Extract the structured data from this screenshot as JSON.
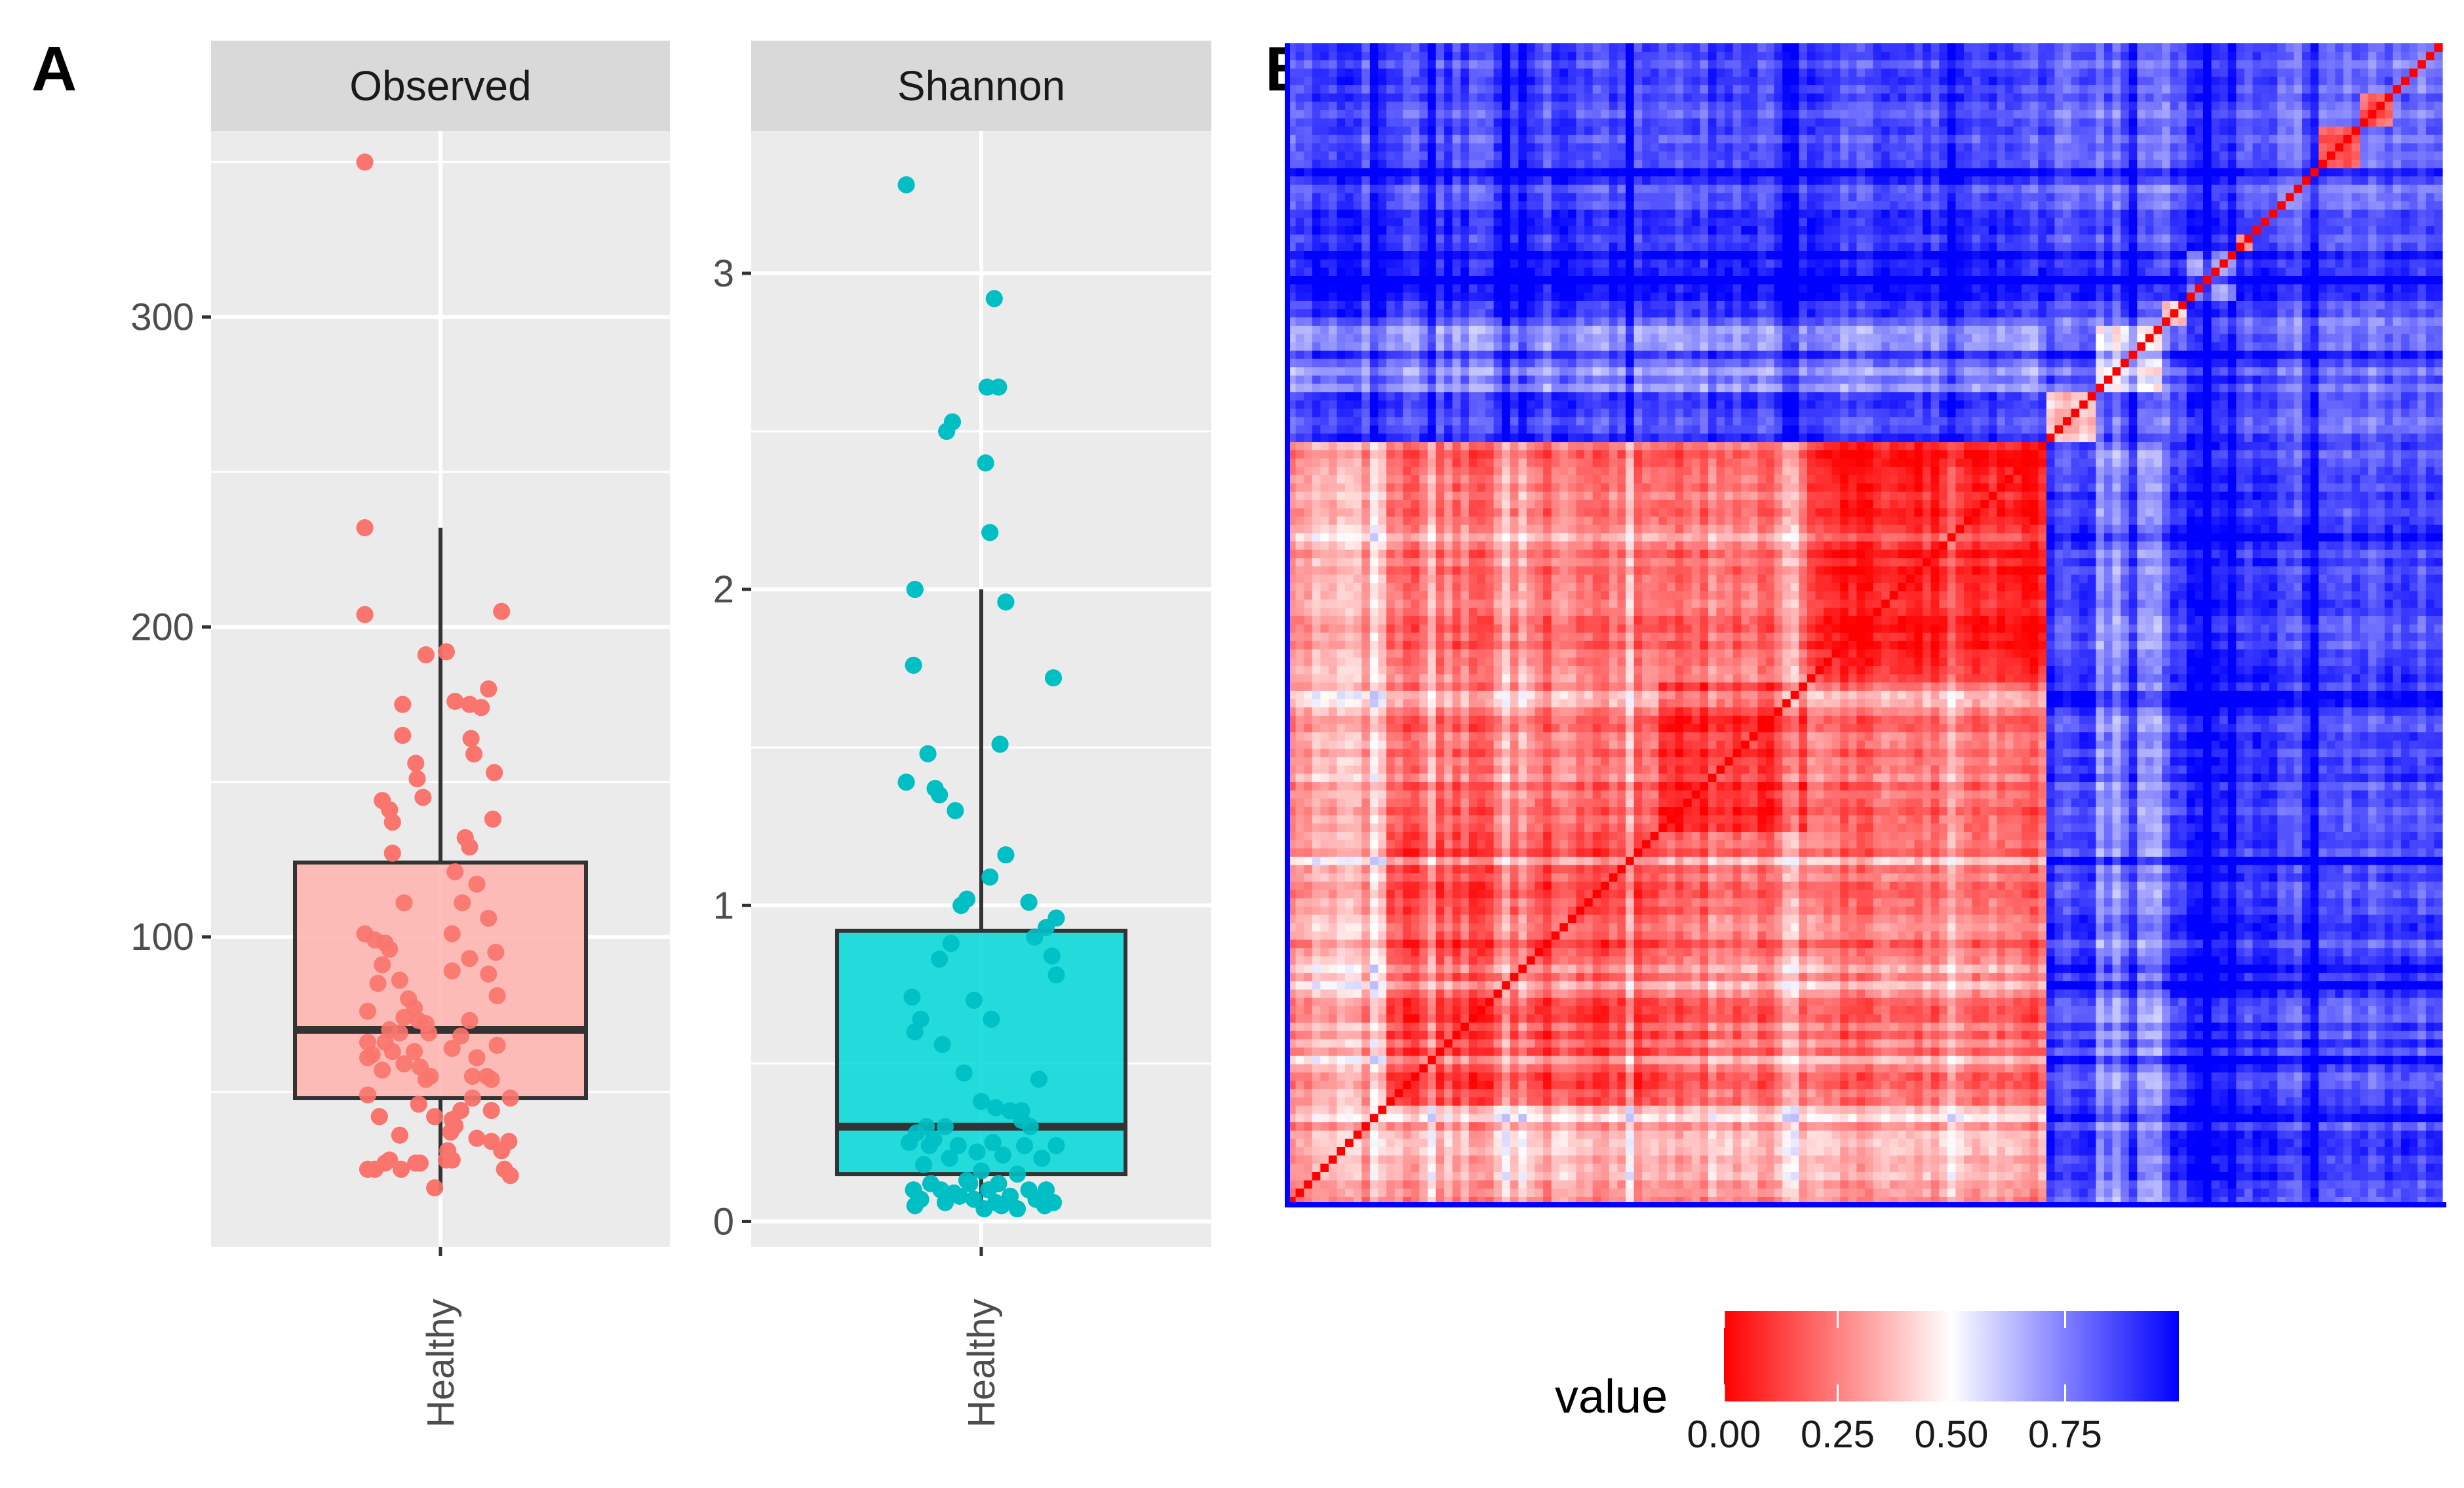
{
  "panel_labels": {
    "a": "A",
    "b": "B"
  },
  "chart_data": [
    {
      "type": "boxplot",
      "panel": "A",
      "facet": "Observed",
      "category": "Healthy",
      "color": "#F8766D",
      "fill": "#FFB3AE",
      "ylim": [
        0,
        360
      ],
      "yticks": [
        100,
        200,
        300
      ],
      "box": {
        "min": 18,
        "q1": 48,
        "median": 70,
        "q3": 124,
        "max": 232
      },
      "points": [
        {
          "x": -0.52,
          "y": 350
        },
        {
          "x": -0.52,
          "y": 232
        },
        {
          "x": 0.04,
          "y": 192
        },
        {
          "x": -0.1,
          "y": 191
        },
        {
          "x": -0.52,
          "y": 204
        },
        {
          "x": 0.42,
          "y": 205
        },
        {
          "x": -0.26,
          "y": 175
        },
        {
          "x": 0.33,
          "y": 180
        },
        {
          "x": 0.1,
          "y": 176
        },
        {
          "x": 0.2,
          "y": 175
        },
        {
          "x": 0.28,
          "y": 174
        },
        {
          "x": 0.21,
          "y": 164
        },
        {
          "x": -0.26,
          "y": 165
        },
        {
          "x": 0.23,
          "y": 159
        },
        {
          "x": -0.17,
          "y": 156
        },
        {
          "x": -0.16,
          "y": 151
        },
        {
          "x": 0.37,
          "y": 153
        },
        {
          "x": -0.12,
          "y": 145
        },
        {
          "x": -0.4,
          "y": 144
        },
        {
          "x": -0.35,
          "y": 141
        },
        {
          "x": -0.33,
          "y": 137
        },
        {
          "x": 0.36,
          "y": 138
        },
        {
          "x": 0.17,
          "y": 132
        },
        {
          "x": 0.2,
          "y": 129
        },
        {
          "x": -0.33,
          "y": 127
        },
        {
          "x": 0.1,
          "y": 121
        },
        {
          "x": 0.25,
          "y": 117
        },
        {
          "x": -0.25,
          "y": 111
        },
        {
          "x": 0.15,
          "y": 111
        },
        {
          "x": 0.33,
          "y": 106
        },
        {
          "x": -0.52,
          "y": 101
        },
        {
          "x": -0.45,
          "y": 99
        },
        {
          "x": -0.38,
          "y": 98
        },
        {
          "x": 0.08,
          "y": 101
        },
        {
          "x": -0.35,
          "y": 96
        },
        {
          "x": 0.2,
          "y": 93
        },
        {
          "x": 0.38,
          "y": 95
        },
        {
          "x": -0.4,
          "y": 91
        },
        {
          "x": 0.33,
          "y": 88
        },
        {
          "x": 0.08,
          "y": 89
        },
        {
          "x": -0.28,
          "y": 86
        },
        {
          "x": -0.43,
          "y": 85
        },
        {
          "x": 0.39,
          "y": 81
        },
        {
          "x": -0.22,
          "y": 80
        },
        {
          "x": -0.18,
          "y": 77
        },
        {
          "x": -0.5,
          "y": 76
        },
        {
          "x": -0.25,
          "y": 74
        },
        {
          "x": -0.15,
          "y": 73
        },
        {
          "x": -0.1,
          "y": 72
        },
        {
          "x": 0.2,
          "y": 73
        },
        {
          "x": -0.35,
          "y": 70
        },
        {
          "x": -0.28,
          "y": 69
        },
        {
          "x": -0.08,
          "y": 69
        },
        {
          "x": 0.14,
          "y": 68
        },
        {
          "x": -0.5,
          "y": 66
        },
        {
          "x": -0.38,
          "y": 66
        },
        {
          "x": -0.33,
          "y": 63
        },
        {
          "x": -0.18,
          "y": 63
        },
        {
          "x": 0.08,
          "y": 64
        },
        {
          "x": 0.39,
          "y": 65
        },
        {
          "x": -0.5,
          "y": 61
        },
        {
          "x": -0.25,
          "y": 59
        },
        {
          "x": 0.25,
          "y": 61
        },
        {
          "x": -0.14,
          "y": 58
        },
        {
          "x": -0.4,
          "y": 57
        },
        {
          "x": -0.07,
          "y": 55
        },
        {
          "x": 0.22,
          "y": 55
        },
        {
          "x": 0.32,
          "y": 55
        },
        {
          "x": 0.35,
          "y": 54
        },
        {
          "x": -0.1,
          "y": 54
        },
        {
          "x": -0.5,
          "y": 49
        },
        {
          "x": 0.22,
          "y": 48
        },
        {
          "x": 0.48,
          "y": 48
        },
        {
          "x": -0.15,
          "y": 46
        },
        {
          "x": 0.14,
          "y": 44
        },
        {
          "x": 0.35,
          "y": 44
        },
        {
          "x": -0.04,
          "y": 42
        },
        {
          "x": -0.42,
          "y": 42
        },
        {
          "x": 0.08,
          "y": 41
        },
        {
          "x": 0.07,
          "y": 37
        },
        {
          "x": -0.28,
          "y": 36
        },
        {
          "x": 0.25,
          "y": 35
        },
        {
          "x": 0.35,
          "y": 34
        },
        {
          "x": 0.47,
          "y": 34
        },
        {
          "x": 0.42,
          "y": 31
        },
        {
          "x": 0.05,
          "y": 31
        },
        {
          "x": 0.04,
          "y": 28
        },
        {
          "x": -0.38,
          "y": 27
        },
        {
          "x": -0.35,
          "y": 28
        },
        {
          "x": -0.14,
          "y": 27
        },
        {
          "x": -0.5,
          "y": 25
        },
        {
          "x": -0.45,
          "y": 25
        },
        {
          "x": -0.27,
          "y": 25
        },
        {
          "x": -0.17,
          "y": 27
        },
        {
          "x": 0.44,
          "y": 25
        },
        {
          "x": 0.48,
          "y": 23
        },
        {
          "x": -0.04,
          "y": 19
        },
        {
          "x": 0.08,
          "y": 28
        },
        {
          "x": 0.1,
          "y": 39
        },
        {
          "x": -0.47,
          "y": 62
        }
      ]
    },
    {
      "type": "boxplot",
      "panel": "A",
      "facet": "Shannon",
      "category": "Healthy",
      "color": "#00BFC4",
      "fill": "#00D8D8",
      "ylim": [
        -0.08,
        3.45
      ],
      "yticks": [
        0,
        1,
        2,
        3
      ],
      "box": {
        "min": 0.04,
        "q1": 0.15,
        "median": 0.3,
        "q3": 0.92,
        "max": 2.0
      },
      "points": [
        {
          "x": -0.52,
          "y": 3.28
        },
        {
          "x": 0.09,
          "y": 2.92
        },
        {
          "x": 0.04,
          "y": 2.64
        },
        {
          "x": 0.12,
          "y": 2.64
        },
        {
          "x": -0.2,
          "y": 2.53
        },
        {
          "x": -0.24,
          "y": 2.5
        },
        {
          "x": 0.03,
          "y": 2.4
        },
        {
          "x": 0.06,
          "y": 2.18
        },
        {
          "x": -0.46,
          "y": 2.0
        },
        {
          "x": 0.17,
          "y": 1.96
        },
        {
          "x": -0.47,
          "y": 1.76
        },
        {
          "x": 0.5,
          "y": 1.72
        },
        {
          "x": 0.13,
          "y": 1.51
        },
        {
          "x": -0.37,
          "y": 1.48
        },
        {
          "x": -0.52,
          "y": 1.39
        },
        {
          "x": -0.32,
          "y": 1.37
        },
        {
          "x": -0.29,
          "y": 1.35
        },
        {
          "x": -0.18,
          "y": 1.3
        },
        {
          "x": 0.17,
          "y": 1.16
        },
        {
          "x": 0.06,
          "y": 1.09
        },
        {
          "x": 0.33,
          "y": 1.01
        },
        {
          "x": -0.1,
          "y": 1.02
        },
        {
          "x": -0.14,
          "y": 1.0
        },
        {
          "x": 0.52,
          "y": 0.96
        },
        {
          "x": 0.45,
          "y": 0.93
        },
        {
          "x": 0.37,
          "y": 0.9
        },
        {
          "x": -0.21,
          "y": 0.88
        },
        {
          "x": 0.49,
          "y": 0.84
        },
        {
          "x": -0.29,
          "y": 0.83
        },
        {
          "x": 0.52,
          "y": 0.78
        },
        {
          "x": -0.48,
          "y": 0.71
        },
        {
          "x": -0.05,
          "y": 0.7
        },
        {
          "x": -0.42,
          "y": 0.64
        },
        {
          "x": 0.07,
          "y": 0.64
        },
        {
          "x": -0.46,
          "y": 0.6
        },
        {
          "x": -0.27,
          "y": 0.56
        },
        {
          "x": -0.12,
          "y": 0.47
        },
        {
          "x": 0.4,
          "y": 0.45
        },
        {
          "x": 0.0,
          "y": 0.38
        },
        {
          "x": 0.1,
          "y": 0.36
        },
        {
          "x": 0.2,
          "y": 0.35
        },
        {
          "x": 0.28,
          "y": 0.35
        },
        {
          "x": -0.25,
          "y": 0.3
        },
        {
          "x": -0.38,
          "y": 0.3
        },
        {
          "x": 0.34,
          "y": 0.3
        },
        {
          "x": -0.45,
          "y": 0.28
        },
        {
          "x": -0.5,
          "y": 0.25
        },
        {
          "x": -0.33,
          "y": 0.26
        },
        {
          "x": -0.16,
          "y": 0.24
        },
        {
          "x": 0.08,
          "y": 0.25
        },
        {
          "x": 0.3,
          "y": 0.24
        },
        {
          "x": 0.52,
          "y": 0.24
        },
        {
          "x": -0.03,
          "y": 0.22
        },
        {
          "x": 0.15,
          "y": 0.21
        },
        {
          "x": -0.22,
          "y": 0.2
        },
        {
          "x": 0.42,
          "y": 0.2
        },
        {
          "x": -0.4,
          "y": 0.18
        },
        {
          "x": 0.0,
          "y": 0.16
        },
        {
          "x": 0.25,
          "y": 0.15
        },
        {
          "x": -0.1,
          "y": 0.13
        },
        {
          "x": -0.35,
          "y": 0.12
        },
        {
          "x": 0.12,
          "y": 0.12
        },
        {
          "x": -0.47,
          "y": 0.1
        },
        {
          "x": -0.28,
          "y": 0.1
        },
        {
          "x": 0.05,
          "y": 0.1
        },
        {
          "x": 0.33,
          "y": 0.1
        },
        {
          "x": 0.45,
          "y": 0.1
        },
        {
          "x": -0.15,
          "y": 0.08
        },
        {
          "x": 0.2,
          "y": 0.08
        },
        {
          "x": -0.42,
          "y": 0.07
        },
        {
          "x": -0.05,
          "y": 0.07
        },
        {
          "x": 0.38,
          "y": 0.07
        },
        {
          "x": -0.25,
          "y": 0.06
        },
        {
          "x": 0.1,
          "y": 0.06
        },
        {
          "x": 0.5,
          "y": 0.06
        },
        {
          "x": -0.46,
          "y": 0.05
        },
        {
          "x": 0.14,
          "y": 0.05
        },
        {
          "x": 0.44,
          "y": 0.05
        },
        {
          "x": 0.25,
          "y": 0.04
        },
        {
          "x": 0.02,
          "y": 0.04
        },
        {
          "x": -0.19,
          "y": 0.09
        },
        {
          "x": -0.08,
          "y": 0.12
        },
        {
          "x": -0.36,
          "y": 0.24
        },
        {
          "x": 0.28,
          "y": 0.32
        }
      ]
    },
    {
      "type": "heatmap",
      "panel": "B",
      "matrix_size": 140,
      "value_range": [
        0,
        1
      ],
      "diagonal_value": 0.0,
      "clusters": [
        {
          "start": 0,
          "end": 12,
          "within": 0.3
        },
        {
          "start": 12,
          "end": 45,
          "within": 0.15
        },
        {
          "start": 45,
          "end": 63,
          "within": 0.1
        },
        {
          "start": 63,
          "end": 92,
          "within": 0.06
        },
        {
          "start": 92,
          "end": 98,
          "within": 0.35
        },
        {
          "start": 98,
          "end": 106,
          "within": 0.52
        },
        {
          "start": 106,
          "end": 109,
          "within": 0.4
        },
        {
          "start": 109,
          "end": 115,
          "within": 0.72
        },
        {
          "start": 115,
          "end": 117,
          "within": 0.28
        },
        {
          "start": 117,
          "end": 125,
          "within": 0.76
        },
        {
          "start": 125,
          "end": 130,
          "within": 0.2
        },
        {
          "start": 130,
          "end": 134,
          "within": 0.22
        },
        {
          "start": 134,
          "end": 140,
          "within": 0.74
        }
      ],
      "legend": {
        "title": "value",
        "ticks": [
          "0.00",
          "0.25",
          "0.50",
          "0.75"
        ],
        "tick_values": [
          0,
          0.25,
          0.5,
          0.75
        ],
        "colors": {
          "low": "#FF0000",
          "mid": "#FFFFFF",
          "high": "#0000FF"
        }
      }
    }
  ]
}
